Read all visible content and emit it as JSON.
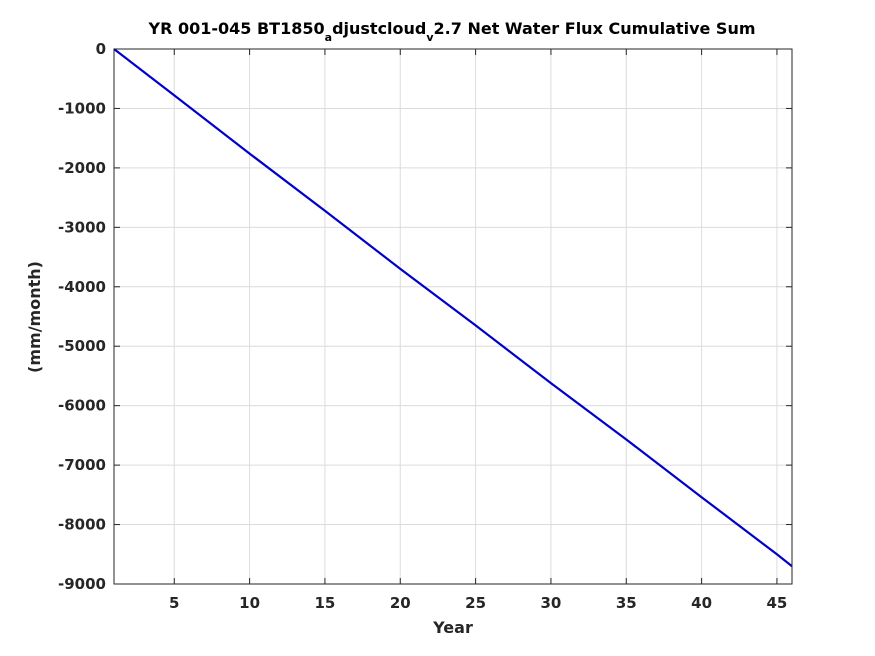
{
  "chart_data": {
    "type": "line",
    "title": {
      "part1": "YR 001-045 BT1850",
      "sub1": "a",
      "part2": "djustcloud",
      "sub2": "v",
      "part3": "2.7 Net Water Flux Cumulative Sum"
    },
    "xlabel": "Year",
    "ylabel": "(mm/month)",
    "xlim": [
      1,
      46
    ],
    "ylim": [
      -9000,
      0
    ],
    "xticks": [
      5,
      10,
      15,
      20,
      25,
      30,
      35,
      40,
      45
    ],
    "yticks": [
      0,
      -1000,
      -2000,
      -3000,
      -4000,
      -5000,
      -6000,
      -7000,
      -8000,
      -9000
    ],
    "grid": true,
    "series": [
      {
        "color": "#0000cc",
        "x": [
          1,
          5,
          10,
          15,
          20,
          25,
          30,
          35,
          40,
          45,
          46
        ],
        "y": [
          0,
          -780,
          -1760,
          -2720,
          -3700,
          -4650,
          -5620,
          -6570,
          -7540,
          -8500,
          -8700
        ]
      }
    ]
  }
}
